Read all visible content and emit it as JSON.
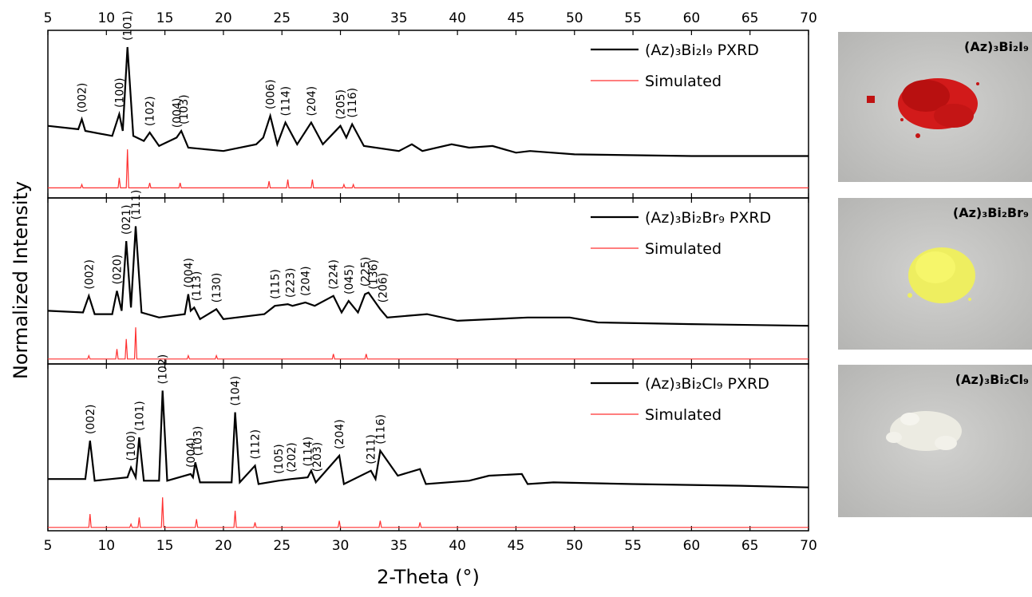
{
  "chart_data": [
    {
      "type": "line",
      "xlim": [
        5,
        70
      ],
      "xticks": [
        5,
        10,
        15,
        20,
        25,
        30,
        35,
        40,
        45,
        50,
        55,
        60,
        65,
        70
      ],
      "ylim": [
        0,
        1
      ],
      "series": [
        {
          "name": "(Az)₃Bi₂I₉ PXRD",
          "color": "#000000",
          "x": [
            5,
            7.6,
            7.9,
            8.2,
            10.5,
            11.1,
            11.4,
            11.8,
            12.3,
            13.2,
            13.7,
            14.5,
            16.0,
            16.4,
            17,
            20,
            22.8,
            23.4,
            24,
            24.6,
            25.3,
            26.3,
            27.5,
            28.5,
            30,
            30.5,
            31,
            32,
            35,
            36.1,
            37,
            39.5,
            41,
            43,
            45,
            46.2,
            50,
            60,
            70
          ],
          "values": [
            0.43,
            0.41,
            0.47,
            0.4,
            0.37,
            0.5,
            0.4,
            0.9,
            0.37,
            0.34,
            0.39,
            0.31,
            0.36,
            0.4,
            0.3,
            0.28,
            0.32,
            0.36,
            0.49,
            0.32,
            0.45,
            0.32,
            0.45,
            0.32,
            0.43,
            0.36,
            0.44,
            0.31,
            0.28,
            0.32,
            0.28,
            0.32,
            0.3,
            0.31,
            0.27,
            0.28,
            0.26,
            0.25,
            0.25
          ]
        },
        {
          "name": "Simulated",
          "color": "#ff3030",
          "x": [
            5,
            7.8,
            7.9,
            8.0,
            11.0,
            11.1,
            11.2,
            11.7,
            11.8,
            11.9,
            13.6,
            13.7,
            13.8,
            16.2,
            16.3,
            16.4,
            23.8,
            23.9,
            24.0,
            25.4,
            25.5,
            25.6,
            27.5,
            27.6,
            27.7,
            30.2,
            30.3,
            30.4,
            31.0,
            31.1,
            31.2,
            70
          ],
          "values": [
            0.06,
            0.06,
            0.08,
            0.06,
            0.06,
            0.12,
            0.06,
            0.06,
            0.29,
            0.06,
            0.06,
            0.09,
            0.06,
            0.06,
            0.09,
            0.06,
            0.06,
            0.1,
            0.06,
            0.06,
            0.11,
            0.06,
            0.06,
            0.11,
            0.06,
            0.06,
            0.08,
            0.06,
            0.06,
            0.08,
            0.06,
            0.06
          ]
        }
      ],
      "annotations": [
        {
          "text": "(002)",
          "x": 7.9
        },
        {
          "text": "(100)",
          "x": 11.1
        },
        {
          "text": "(101)",
          "x": 11.8
        },
        {
          "text": "(102)",
          "x": 13.7
        },
        {
          "text": "(004)",
          "x": 16.0
        },
        {
          "text": "(103)",
          "x": 16.6
        },
        {
          "text": "(006)",
          "x": 24.0
        },
        {
          "text": "(114)",
          "x": 25.3
        },
        {
          "text": "(204)",
          "x": 27.5
        },
        {
          "text": "(205)",
          "x": 30.0
        },
        {
          "text": "(116)",
          "x": 31.0
        }
      ]
    },
    {
      "type": "line",
      "xlim": [
        5,
        70
      ],
      "ylim": [
        0,
        1
      ],
      "ylabel": "Normalized Intensity",
      "series": [
        {
          "name": "(Az)₃Bi₂Br₉ PXRD",
          "color": "#000000",
          "x": [
            5,
            8,
            8.5,
            9,
            10.5,
            10.9,
            11.3,
            11.7,
            12.1,
            12.5,
            13,
            14.5,
            16.7,
            17,
            17.2,
            17.5,
            18,
            19.4,
            20,
            23.5,
            24.4,
            25.5,
            25.9,
            27,
            27.8,
            29.4,
            30.1,
            30.7,
            31.5,
            32.1,
            32.4,
            33.4,
            34,
            37.4,
            40,
            46,
            49.6,
            52,
            60,
            70
          ],
          "values": [
            0.32,
            0.31,
            0.41,
            0.3,
            0.3,
            0.44,
            0.32,
            0.74,
            0.34,
            0.83,
            0.31,
            0.28,
            0.3,
            0.42,
            0.32,
            0.34,
            0.27,
            0.33,
            0.27,
            0.3,
            0.35,
            0.36,
            0.35,
            0.37,
            0.35,
            0.41,
            0.31,
            0.38,
            0.31,
            0.42,
            0.43,
            0.33,
            0.28,
            0.3,
            0.26,
            0.28,
            0.28,
            0.25,
            0.24,
            0.23
          ]
        },
        {
          "name": "Simulated",
          "color": "#ff3030",
          "x": [
            5,
            8.4,
            8.5,
            8.6,
            10.8,
            10.9,
            11.0,
            11.6,
            11.7,
            11.8,
            12.4,
            12.5,
            12.6,
            16.9,
            17.0,
            17.1,
            19.3,
            19.4,
            19.5,
            29.3,
            29.4,
            29.5,
            32.1,
            32.2,
            32.3,
            70
          ],
          "values": [
            0.03,
            0.03,
            0.05,
            0.03,
            0.03,
            0.09,
            0.03,
            0.03,
            0.15,
            0.03,
            0.03,
            0.22,
            0.03,
            0.03,
            0.05,
            0.03,
            0.03,
            0.05,
            0.03,
            0.03,
            0.06,
            0.03,
            0.03,
            0.06,
            0.03,
            0.03
          ]
        }
      ],
      "annotations": [
        {
          "text": "(002)",
          "x": 8.5
        },
        {
          "text": "(020)",
          "x": 10.9
        },
        {
          "text": "(021)",
          "x": 11.7
        },
        {
          "text": "(111)",
          "x": 12.5
        },
        {
          "text": "(004)",
          "x": 17.0
        },
        {
          "text": "(113)",
          "x": 17.7
        },
        {
          "text": "(130)",
          "x": 19.4
        },
        {
          "text": "(115)",
          "x": 24.4
        },
        {
          "text": "(223)",
          "x": 25.7
        },
        {
          "text": "(204)",
          "x": 27.0
        },
        {
          "text": "(224)",
          "x": 29.4
        },
        {
          "text": "(045)",
          "x": 30.7
        },
        {
          "text": "(225)",
          "x": 32.1
        },
        {
          "text": "(136)",
          "x": 32.8
        },
        {
          "text": "(206)",
          "x": 33.6
        }
      ]
    },
    {
      "type": "line",
      "xlim": [
        5,
        70
      ],
      "xticks": [
        5,
        10,
        15,
        20,
        25,
        30,
        35,
        40,
        45,
        50,
        55,
        60,
        65,
        70
      ],
      "ylim": [
        0,
        1
      ],
      "xlabel": "2-Theta (°)",
      "series": [
        {
          "name": "(Az)₃Bi₂Cl₉ PXRD",
          "color": "#000000",
          "x": [
            5,
            8.2,
            8.6,
            9,
            11.8,
            12.1,
            12.5,
            12.8,
            13.2,
            14.5,
            14.8,
            15.2,
            17.2,
            17.4,
            17.6,
            18,
            20.7,
            21,
            21.4,
            22.7,
            23,
            24.7,
            25.8,
            27.2,
            27.5,
            27.9,
            29.9,
            30.3,
            32.6,
            33.0,
            33.4,
            34.9,
            36.8,
            37.3,
            41,
            42.7,
            45.5,
            46,
            48.2,
            55,
            64.2,
            70
          ],
          "values": [
            0.31,
            0.31,
            0.54,
            0.3,
            0.32,
            0.38,
            0.32,
            0.56,
            0.3,
            0.3,
            0.84,
            0.3,
            0.34,
            0.32,
            0.41,
            0.29,
            0.29,
            0.71,
            0.29,
            0.39,
            0.28,
            0.3,
            0.31,
            0.32,
            0.36,
            0.29,
            0.45,
            0.28,
            0.36,
            0.31,
            0.48,
            0.33,
            0.37,
            0.28,
            0.3,
            0.33,
            0.34,
            0.28,
            0.29,
            0.28,
            0.27,
            0.26
          ]
        },
        {
          "name": "Simulated",
          "color": "#ff3030",
          "x": [
            5,
            8.5,
            8.6,
            8.7,
            12.0,
            12.1,
            12.2,
            12.7,
            12.8,
            12.9,
            14.7,
            14.8,
            14.9,
            17.6,
            17.7,
            17.8,
            20.9,
            21.0,
            21.1,
            22.6,
            22.7,
            22.8,
            29.8,
            29.9,
            30.0,
            33.3,
            33.4,
            33.5,
            36.7,
            36.8,
            36.9,
            70
          ],
          "values": [
            0.02,
            0.02,
            0.1,
            0.02,
            0.02,
            0.04,
            0.02,
            0.02,
            0.08,
            0.02,
            0.02,
            0.2,
            0.02,
            0.02,
            0.07,
            0.02,
            0.02,
            0.12,
            0.02,
            0.02,
            0.05,
            0.02,
            0.02,
            0.06,
            0.02,
            0.02,
            0.06,
            0.02,
            0.02,
            0.05,
            0.02,
            0.02
          ]
        }
      ],
      "annotations": [
        {
          "text": "(002)",
          "x": 8.6
        },
        {
          "text": "(100)",
          "x": 12.1
        },
        {
          "text": "(101)",
          "x": 12.8
        },
        {
          "text": "(102)",
          "x": 14.8
        },
        {
          "text": "(004)",
          "x": 17.2
        },
        {
          "text": "(103)",
          "x": 17.8
        },
        {
          "text": "(104)",
          "x": 21.0
        },
        {
          "text": "(112)",
          "x": 22.7
        },
        {
          "text": "(105)",
          "x": 24.7
        },
        {
          "text": "(202)",
          "x": 25.8
        },
        {
          "text": "(114)",
          "x": 27.2
        },
        {
          "text": "(203)",
          "x": 28.0
        },
        {
          "text": "(204)",
          "x": 29.9
        },
        {
          "text": "(211)",
          "x": 32.6
        },
        {
          "text": "(116)",
          "x": 33.4
        }
      ]
    }
  ],
  "photos": [
    {
      "label": "(Az)₃Bi₂I₉"
    },
    {
      "label": "(Az)₃Bi₂Br₉"
    },
    {
      "label": "(Az)₃Bi₂Cl₉"
    }
  ]
}
